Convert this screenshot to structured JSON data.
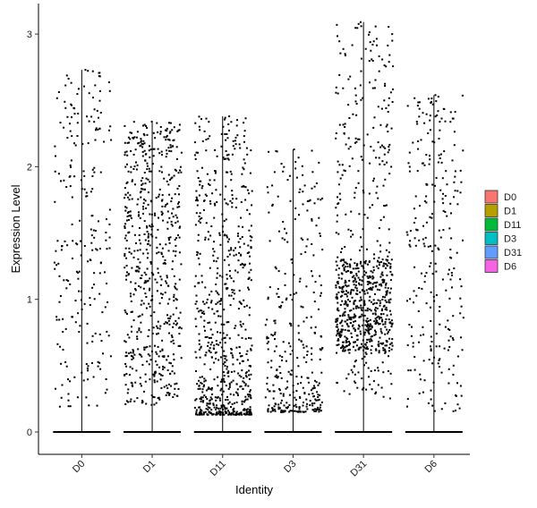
{
  "chart_data": {
    "type": "scatter",
    "subtype": "violin-jitter",
    "title": "",
    "xlabel": "Identity",
    "ylabel": "Expression Level",
    "ylim": [
      -0.17,
      3.15
    ],
    "yticks": [
      0,
      1,
      2,
      3
    ],
    "categories": [
      "D0",
      "D1",
      "D11",
      "D3",
      "D31",
      "D6"
    ],
    "colors": [
      "#F8766D",
      "#B79F00",
      "#00BA38",
      "#00BFC4",
      "#619CFF",
      "#F564E3"
    ],
    "series": [
      {
        "name": "D0",
        "max": 2.73,
        "min_nonzero": 0.18,
        "nonzero_points": 230,
        "density": "uniform"
      },
      {
        "name": "D1",
        "max": 2.34,
        "min_nonzero": 0.2,
        "nonzero_points": 620,
        "density": "uniform"
      },
      {
        "name": "D11",
        "max": 2.38,
        "min_nonzero": 0.13,
        "nonzero_points": 700,
        "density": "low-heavy"
      },
      {
        "name": "D3",
        "max": 2.13,
        "min_nonzero": 0.15,
        "nonzero_points": 330,
        "density": "low-heavy"
      },
      {
        "name": "D31",
        "max": 3.09,
        "min_nonzero": 0.25,
        "nonzero_points": 820,
        "density": "mid-heavy"
      },
      {
        "name": "D6",
        "max": 2.54,
        "min_nonzero": 0.15,
        "nonzero_points": 260,
        "density": "uniform"
      }
    ],
    "zero_band": true,
    "legend": {
      "position": "right",
      "entries": [
        "D0",
        "D1",
        "D11",
        "D3",
        "D31",
        "D6"
      ]
    },
    "grid": false
  }
}
